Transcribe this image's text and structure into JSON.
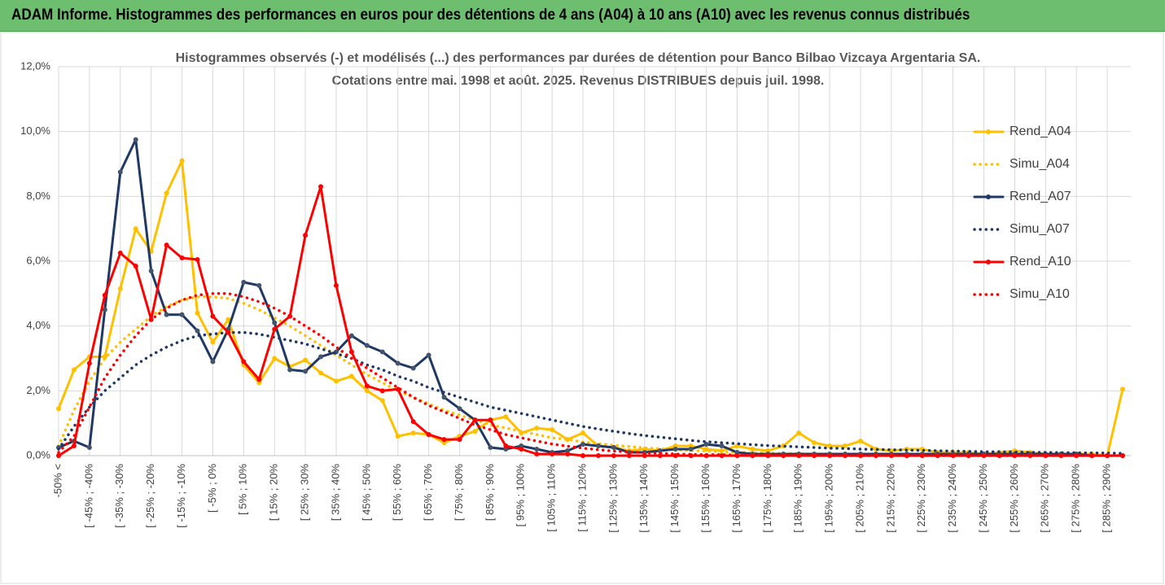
{
  "header": {
    "title": "ADAM Informe. Histogrammes des performances en euros pour des détentions de 4 ans (A04) à 10 ans (A10) avec les revenus connus distribués"
  },
  "chart_data": {
    "type": "line",
    "title": "Histogrammes observés (-) et modélisés (...) des performances par durées de détention pour Banco Bilbao Vizcaya Argentaria SA.",
    "subtitle": "Cotations entre mai. 1998 et août. 2025. Revenus DISTRIBUES depuis juil. 1998.",
    "categories": [
      "-50% <",
      null,
      "[ -45% ; -40%",
      null,
      "[ -35% ; -30%",
      null,
      "[ -25% ; -20%",
      null,
      "[ -15% ; -10%",
      null,
      "[ -5% ; 0%",
      null,
      "[ 5% ; 10%",
      null,
      "[ 15% ; 20%",
      null,
      "[ 25% ; 30%",
      null,
      "[ 35% ; 40%",
      null,
      "[ 45% ; 50%",
      null,
      "[ 55% ; 60%",
      null,
      "[ 65% ; 70%",
      null,
      "[ 75% ; 80%",
      null,
      "[ 85% ; 90%",
      null,
      "[ 95% ; 100%",
      null,
      "[ 105% ; 110%",
      null,
      "[ 115% ; 120%",
      null,
      "[ 125% ; 130%",
      null,
      "[ 135% ; 140%",
      null,
      "[ 145% ; 150%",
      null,
      "[ 155% ; 160%",
      null,
      "[ 165% ; 170%",
      null,
      "[ 175% ; 180%",
      null,
      "[ 185% ; 190%",
      null,
      "[ 195% ; 200%",
      null,
      "[ 205% ; 210%",
      null,
      "[ 215% ; 220%",
      null,
      "[ 225% ; 230%",
      null,
      "[ 235% ; 240%",
      null,
      "[ 245% ; 250%",
      null,
      "[ 255% ; 260%",
      null,
      "[ 265% ; 270%",
      null,
      "[ 275% ; 280%",
      null,
      "[ 285% ; 290%",
      null
    ],
    "series": [
      {
        "name": "Rend_A04",
        "color": "#ffc000",
        "style": "solid",
        "values": [
          1.45,
          2.65,
          3.05,
          3.05,
          5.15,
          7.0,
          6.3,
          8.1,
          9.1,
          4.4,
          3.5,
          4.2,
          2.8,
          2.25,
          3.0,
          2.75,
          2.95,
          2.55,
          2.3,
          2.45,
          2.0,
          1.7,
          0.6,
          0.7,
          0.65,
          0.4,
          0.6,
          0.75,
          1.1,
          1.2,
          0.7,
          0.85,
          0.8,
          0.5,
          0.7,
          0.3,
          0.25,
          0.15,
          0.2,
          0.15,
          0.3,
          0.3,
          0.2,
          0.15,
          0.3,
          0.2,
          0.15,
          0.3,
          0.7,
          0.4,
          0.3,
          0.3,
          0.45,
          0.2,
          0.15,
          0.2,
          0.2,
          0.1,
          0.1,
          0.1,
          0.05,
          0.1,
          0.15,
          0.1,
          0.05,
          0.05,
          0.05,
          0.05,
          0.0,
          2.05
        ]
      },
      {
        "name": "Simu_A04",
        "color": "#ffc000",
        "style": "dotted",
        "values": [
          0.3,
          1.4,
          2.3,
          3.0,
          3.5,
          3.9,
          4.3,
          4.6,
          4.8,
          4.9,
          4.9,
          4.85,
          4.7,
          4.5,
          4.25,
          4.0,
          3.7,
          3.4,
          3.1,
          2.8,
          2.5,
          2.25,
          2.0,
          1.8,
          1.6,
          1.4,
          1.25,
          1.1,
          0.95,
          0.85,
          0.75,
          0.65,
          0.55,
          0.5,
          0.42,
          0.37,
          0.32,
          0.28,
          0.24,
          0.21,
          0.18,
          0.16,
          0.14,
          0.12,
          0.1,
          0.09,
          0.08,
          0.07,
          0.06,
          0.05,
          0.05,
          0.04,
          0.04,
          0.03,
          0.03,
          0.03,
          0.02,
          0.02,
          0.02,
          0.02,
          0.02,
          0.01,
          0.01,
          0.01,
          0.01,
          0.01,
          0.01,
          0.01,
          0.01,
          0.01
        ]
      },
      {
        "name": "Rend_A07",
        "color": "#1f3864",
        "style": "solid",
        "values": [
          0.25,
          0.45,
          0.25,
          4.5,
          8.75,
          9.75,
          5.7,
          4.35,
          4.35,
          3.85,
          2.9,
          3.9,
          5.35,
          5.25,
          4.1,
          2.65,
          2.6,
          3.05,
          3.2,
          3.7,
          3.4,
          3.2,
          2.85,
          2.7,
          3.1,
          1.8,
          1.45,
          1.1,
          0.25,
          0.2,
          0.3,
          0.2,
          0.1,
          0.15,
          0.35,
          0.3,
          0.25,
          0.1,
          0.1,
          0.15,
          0.2,
          0.2,
          0.35,
          0.3,
          0.1,
          0.05,
          0.05,
          0.05,
          0.05,
          0.05,
          0.05,
          0.05,
          0.05,
          0.05,
          0.05,
          0.05,
          0.05,
          0.05,
          0.05,
          0.05,
          0.05,
          0.05,
          0.05,
          0.05,
          0.05,
          0.05,
          0.05,
          0,
          0,
          0
        ]
      },
      {
        "name": "Simu_A07",
        "color": "#1f3864",
        "style": "dotted",
        "values": [
          0.2,
          0.9,
          1.5,
          2.0,
          2.4,
          2.8,
          3.1,
          3.35,
          3.55,
          3.7,
          3.75,
          3.8,
          3.8,
          3.75,
          3.65,
          3.55,
          3.45,
          3.3,
          3.15,
          3.0,
          2.8,
          2.65,
          2.45,
          2.3,
          2.1,
          1.95,
          1.8,
          1.65,
          1.5,
          1.4,
          1.3,
          1.2,
          1.1,
          1.0,
          0.9,
          0.82,
          0.75,
          0.68,
          0.62,
          0.57,
          0.52,
          0.47,
          0.43,
          0.4,
          0.37,
          0.34,
          0.31,
          0.29,
          0.27,
          0.25,
          0.23,
          0.22,
          0.2,
          0.19,
          0.18,
          0.17,
          0.16,
          0.15,
          0.14,
          0.13,
          0.12,
          0.12,
          0.11,
          0.1,
          0.1,
          0.09,
          0.09,
          0.08,
          0.08,
          0.07
        ]
      },
      {
        "name": "Rend_A10",
        "color": "#ff0000",
        "style": "solid",
        "values": [
          0,
          0.3,
          2.85,
          4.95,
          6.25,
          5.85,
          4.2,
          6.5,
          6.1,
          6.05,
          4.3,
          3.8,
          2.9,
          2.35,
          3.9,
          4.3,
          6.8,
          8.3,
          5.25,
          3.2,
          2.15,
          2.0,
          2.05,
          1.05,
          0.65,
          0.5,
          0.5,
          1.1,
          1.1,
          0.3,
          0.2,
          0.05,
          0.05,
          0.05,
          0,
          0,
          0,
          0,
          0,
          0,
          0,
          0,
          0,
          0,
          0,
          0,
          0,
          0,
          0,
          0,
          0,
          0,
          0,
          0,
          0,
          0,
          0,
          0,
          0,
          0,
          0,
          0,
          0,
          0,
          0,
          0,
          0,
          0,
          0,
          0
        ]
      },
      {
        "name": "Simu_A10",
        "color": "#ff0000",
        "style": "dotted",
        "values": [
          0.1,
          0.6,
          1.5,
          2.4,
          3.1,
          3.7,
          4.2,
          4.55,
          4.8,
          4.95,
          5.0,
          5.0,
          4.9,
          4.75,
          4.55,
          4.3,
          4.0,
          3.7,
          3.35,
          3.0,
          2.7,
          2.4,
          2.1,
          1.8,
          1.55,
          1.35,
          1.15,
          0.95,
          0.8,
          0.65,
          0.55,
          0.45,
          0.36,
          0.29,
          0.23,
          0.18,
          0.14,
          0.11,
          0.09,
          0.07,
          0.05,
          0.04,
          0.03,
          0.03,
          0.02,
          0.02,
          0.01,
          0.01,
          0.01,
          0.01,
          0,
          0,
          0,
          0,
          0,
          0,
          0,
          0,
          0,
          0,
          0,
          0,
          0,
          0,
          0,
          0,
          0,
          0,
          0,
          0
        ]
      }
    ],
    "ylim": [
      0,
      12
    ],
    "yticks": [
      {
        "value": 0,
        "label": "0,0%"
      },
      {
        "value": 2,
        "label": "2,0%"
      },
      {
        "value": 4,
        "label": "4,0%"
      },
      {
        "value": 6,
        "label": "6,0%"
      },
      {
        "value": 8,
        "label": "8,0%"
      },
      {
        "value": 10,
        "label": "10,0%"
      },
      {
        "value": 12,
        "label": "12,0%"
      }
    ],
    "grid": true,
    "legend": "right"
  }
}
